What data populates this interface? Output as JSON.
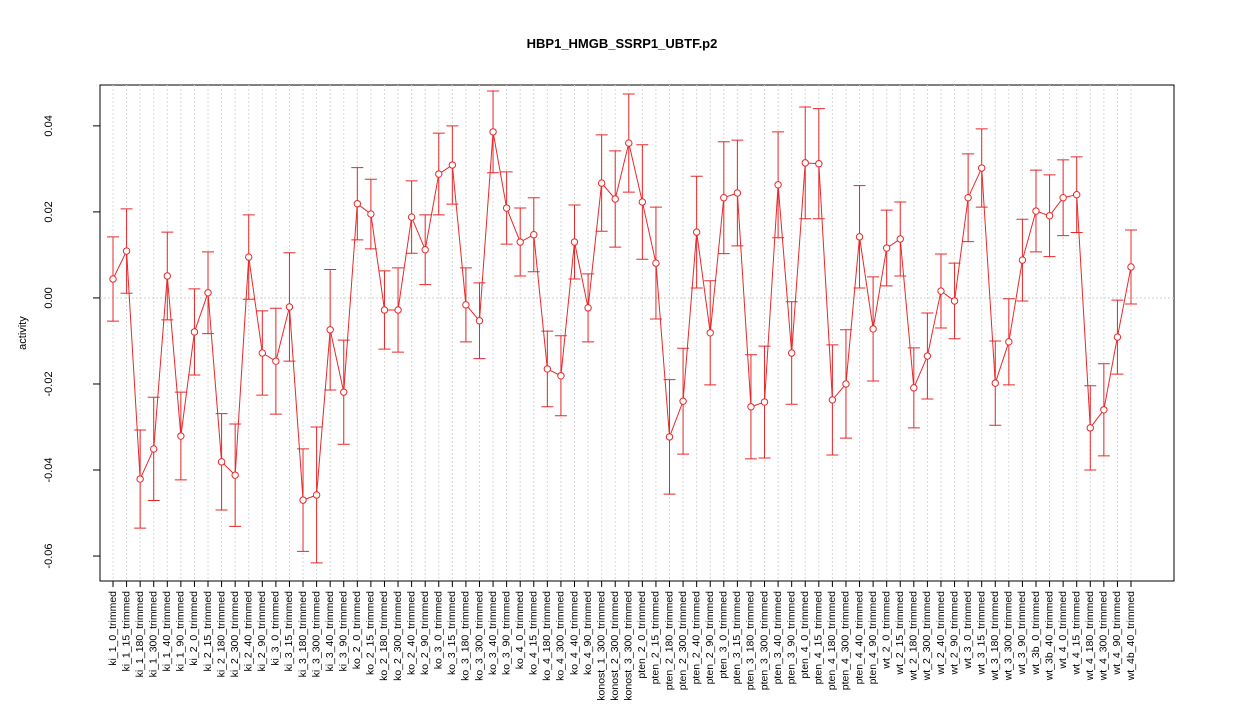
{
  "chart_data": {
    "type": "line",
    "title": "HBP1_HMGB_SSRP1_UBTF.p2",
    "ylabel": "activity",
    "color": "#e8282a",
    "grid": true,
    "categories": [
      "ki_1_0_trimmed",
      "ki_1_15_trimmed",
      "ki_1_180_trimmed",
      "ki_1_300_trimmed",
      "ki_1_40_trimmed",
      "ki_1_90_trimmed",
      "ki_2_0_trimmed",
      "ki_2_15_trimmed",
      "ki_2_180_trimmed",
      "ki_2_300_trimmed",
      "ki_2_40_trimmed",
      "ki_2_90_trimmed",
      "ki_3_0_trimmed",
      "ki_3_15_trimmed",
      "ki_3_180_trimmed",
      "ki_3_300_trimmed",
      "ki_3_40_trimmed",
      "ki_3_90_trimmed",
      "ko_2_0_trimmed",
      "ko_2_15_trimmed",
      "ko_2_180_trimmed",
      "ko_2_300_trimmed",
      "ko_2_40_trimmed",
      "ko_2_90_trimmed",
      "ko_3_0_trimmed",
      "ko_3_15_trimmed",
      "ko_3_180_trimmed",
      "ko_3_300_trimmed",
      "ko_3_40_trimmed",
      "ko_3_90_trimmed",
      "ko_4_0_trimmed",
      "ko_4_15_trimmed",
      "ko_4_180_trimmed",
      "ko_4_300_trimmed",
      "ko_4_40_trimmed",
      "ko_4_90_trimmed",
      "konost_1_300_trimmed",
      "konost_2_300_trimmed",
      "konost_3_300_trimmed",
      "pten_2_0_trimmed",
      "pten_2_15_trimmed",
      "pten_2_180_trimmed",
      "pten_2_300_trimmed",
      "pten_2_40_trimmed",
      "pten_2_90_trimmed",
      "pten_3_0_trimmed",
      "pten_3_15_trimmed",
      "pten_3_180_trimmed",
      "pten_3_300_trimmed",
      "pten_3_40_trimmed",
      "pten_3_90_trimmed",
      "pten_4_0_trimmed",
      "pten_4_15_trimmed",
      "pten_4_180_trimmed",
      "pten_4_300_trimmed",
      "pten_4_40_trimmed",
      "pten_4_90_trimmed",
      "wt_2_0_trimmed",
      "wt_2_15_trimmed",
      "wt_2_180_trimmed",
      "wt_2_300_trimmed",
      "wt_2_40_trimmed",
      "wt_2_90_trimmed",
      "wt_3_0_trimmed",
      "wt_3_15_trimmed",
      "wt_3_180_trimmed",
      "wt_3_300_trimmed",
      "wt_3_90_trimmed",
      "wt_3b_0_trimmed",
      "wt_3b_40_trimmed",
      "wt_4_0_trimmed",
      "wt_4_15_trimmed",
      "wt_4_180_trimmed",
      "wt_4_300_trimmed",
      "wt_4_90_trimmed",
      "wt_4b_40_trimmed"
    ],
    "values": [
      0.0044,
      0.0109,
      -0.0421,
      -0.0351,
      0.0051,
      -0.0321,
      -0.0079,
      0.0012,
      -0.0381,
      -0.0412,
      0.0095,
      -0.0128,
      -0.0147,
      -0.0021,
      -0.047,
      -0.0458,
      -0.0074,
      -0.0219,
      0.0219,
      0.0195,
      -0.0028,
      -0.0028,
      0.0188,
      0.0112,
      0.0288,
      0.0309,
      -0.0016,
      -0.0053,
      0.0386,
      0.0209,
      0.013,
      0.0147,
      -0.0165,
      -0.0181,
      0.013,
      -0.0023,
      0.0267,
      0.023,
      0.036,
      0.0223,
      0.0081,
      -0.0323,
      -0.024,
      0.0153,
      -0.0081,
      0.0233,
      0.0244,
      -0.0253,
      -0.0242,
      0.0263,
      -0.0128,
      0.0314,
      0.0312,
      -0.0237,
      -0.02,
      0.0142,
      -0.0072,
      0.0116,
      0.0137,
      -0.0209,
      -0.0135,
      0.0016,
      -0.0007,
      0.0233,
      0.0302,
      -0.0198,
      -0.0102,
      0.0088,
      0.0202,
      0.0191,
      0.0233,
      0.024,
      -0.0302,
      -0.026,
      -0.0091,
      0.0072
    ],
    "errors": [
      0.0098,
      0.0098,
      0.0114,
      0.012,
      0.0102,
      0.0102,
      0.01,
      0.0095,
      0.0112,
      0.0119,
      0.0098,
      0.0098,
      0.0123,
      0.0126,
      0.0119,
      0.0158,
      0.014,
      0.0121,
      0.0084,
      0.0081,
      0.0091,
      0.0098,
      0.0084,
      0.0081,
      0.0095,
      0.0091,
      0.0086,
      0.0088,
      0.0095,
      0.0084,
      0.0079,
      0.0086,
      0.0088,
      0.0093,
      0.0086,
      0.0079,
      0.0112,
      0.0112,
      0.0114,
      0.0133,
      0.013,
      0.0133,
      0.0123,
      0.013,
      0.0121,
      0.013,
      0.0123,
      0.0121,
      0.013,
      0.0123,
      0.0119,
      0.013,
      0.0128,
      0.0128,
      0.0126,
      0.0119,
      0.0121,
      0.0088,
      0.0086,
      0.0093,
      0.01,
      0.0086,
      0.0088,
      0.0102,
      0.0091,
      0.0098,
      0.01,
      0.0095,
      0.0095,
      0.0095,
      0.0088,
      0.0088,
      0.0098,
      0.0107,
      0.0086,
      0.0086
    ],
    "ylim": [
      -0.0658,
      0.0495
    ],
    "yticks": [
      -0.06,
      -0.04,
      -0.02,
      {
        "value": 0,
        "label": "0.00"
      },
      0.02,
      0.04
    ]
  }
}
